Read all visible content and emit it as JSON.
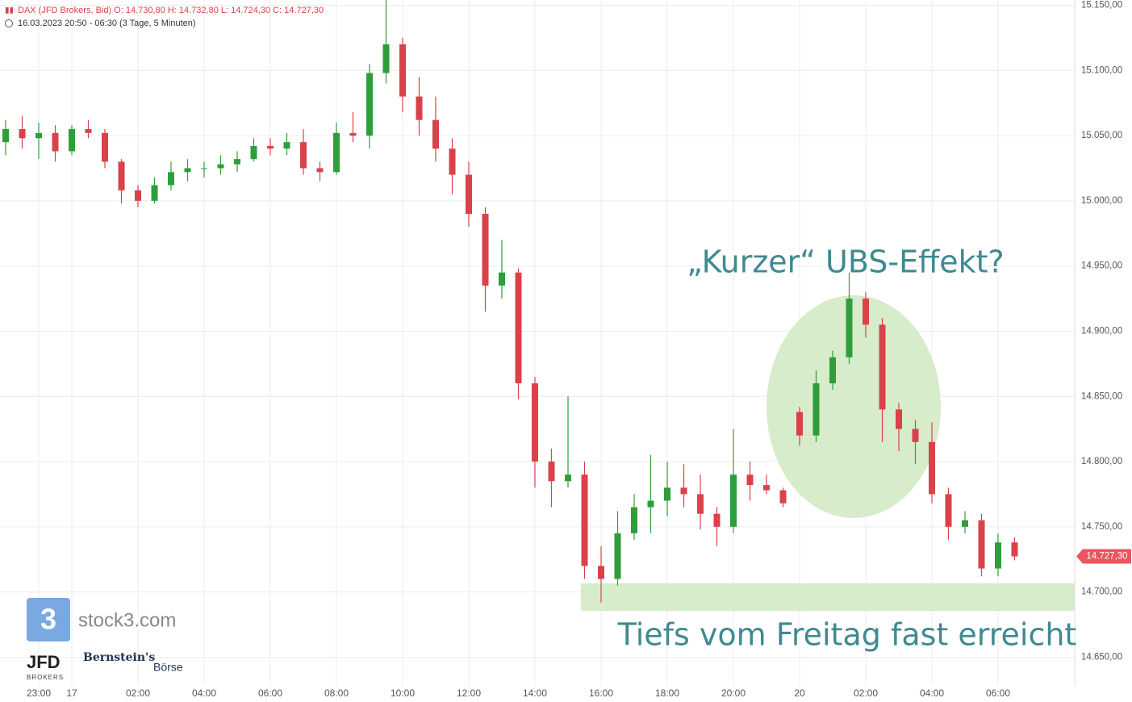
{
  "chart_data": {
    "type": "candlestick",
    "title": "DAX (JFD Brokers, Bid)  O: 14.730,80  H: 14.732,80  L: 14.724,30  C: 14.727,30",
    "subtitle": "16.03.2023 20:50 - 06:30   (3 Tage, 5 Minuten)",
    "categories": [
      null,
      null,
      "23:00",
      null,
      "17",
      null,
      null,
      null,
      "02:00",
      null,
      null,
      null,
      "04:00",
      null,
      null,
      null,
      "06:00",
      null,
      null,
      null,
      "08:00",
      null,
      null,
      null,
      "10:00",
      null,
      null,
      null,
      "12:00",
      null,
      null,
      null,
      "14:00",
      null,
      null,
      null,
      "16:00",
      null,
      null,
      null,
      "18:00",
      null,
      null,
      null,
      "20:00",
      null,
      null,
      null,
      "20",
      null,
      null,
      null,
      "02:00",
      null,
      null,
      null,
      "04:00",
      null,
      null,
      null,
      "06:00",
      null
    ],
    "open": [
      15045,
      15055,
      15048,
      15052,
      15038,
      15055,
      15052,
      15030,
      15008,
      15000,
      15012,
      15022,
      15025,
      15025,
      15028,
      15032,
      15042,
      15040,
      15045,
      15025,
      15022,
      15052,
      15050,
      15098,
      15120,
      15080,
      15062,
      15040,
      15020,
      14990,
      14935,
      14945,
      14860,
      14800,
      14785,
      14790,
      14720,
      14710,
      14745,
      14765,
      14770,
      14780,
      14775,
      14760,
      14750,
      14790,
      14782,
      14778,
      14838,
      14820,
      14860,
      14880,
      14925,
      14905,
      14840,
      14825,
      14815,
      14775,
      14750,
      14755,
      14718,
      14738
    ],
    "high": [
      15062,
      15065,
      15060,
      15058,
      15058,
      15062,
      15055,
      15032,
      15012,
      15018,
      15030,
      15032,
      15030,
      15035,
      15038,
      15048,
      15048,
      15052,
      15055,
      15030,
      15060,
      15068,
      15105,
      15158,
      15125,
      15095,
      15080,
      15048,
      15030,
      14995,
      14970,
      14948,
      14865,
      14810,
      14850,
      14800,
      14735,
      14762,
      14775,
      14805,
      14800,
      14798,
      14790,
      14765,
      14825,
      14800,
      14790,
      14780,
      14842,
      14870,
      14885,
      14945,
      14930,
      14910,
      14845,
      14832,
      14830,
      14780,
      14762,
      14760,
      14745,
      14742
    ],
    "low": [
      15035,
      15040,
      15032,
      15030,
      15035,
      15048,
      15025,
      14998,
      14995,
      14998,
      15008,
      15015,
      15018,
      15020,
      15022,
      15030,
      15035,
      15035,
      15020,
      15015,
      15020,
      15045,
      15040,
      15090,
      15068,
      15050,
      15030,
      15005,
      14980,
      14915,
      14925,
      14848,
      14780,
      14765,
      14780,
      14710,
      14692,
      14705,
      14740,
      14745,
      14758,
      14765,
      14748,
      14735,
      14745,
      14770,
      14775,
      14765,
      14812,
      14815,
      14855,
      14875,
      14895,
      14815,
      14808,
      14798,
      14768,
      14740,
      14745,
      14712,
      14712,
      14724.3
    ],
    "close": [
      15055,
      15048,
      15052,
      15038,
      15055,
      15052,
      15030,
      15008,
      15000,
      15012,
      15022,
      15025,
      15025,
      15028,
      15032,
      15042,
      15040,
      15045,
      15025,
      15022,
      15052,
      15050,
      15098,
      15120,
      15080,
      15062,
      15040,
      15020,
      14990,
      14935,
      14945,
      14860,
      14800,
      14785,
      14790,
      14720,
      14710,
      14745,
      14765,
      14770,
      14780,
      14775,
      14760,
      14750,
      14790,
      14782,
      14778,
      14768,
      14820,
      14860,
      14880,
      14925,
      14905,
      14840,
      14825,
      14815,
      14775,
      14750,
      14755,
      14718,
      14738,
      14727.3
    ],
    "up_color": "#2e9e3a",
    "down_color": "#d9424a",
    "ylim": [
      14628,
      15154
    ],
    "yticks": [
      {
        "value": 14650,
        "label": "14.650,00"
      },
      {
        "value": 14700,
        "label": "14.700,00"
      },
      {
        "value": 14750,
        "label": "14.750,00"
      },
      {
        "value": 14800,
        "label": "14.800,00"
      },
      {
        "value": 14850,
        "label": "14.850,00"
      },
      {
        "value": 14900,
        "label": "14.900,00"
      },
      {
        "value": 14950,
        "label": "14.950,00"
      },
      {
        "value": 15000,
        "label": "15.000,00"
      },
      {
        "value": 15050,
        "label": "15.050,00"
      },
      {
        "value": 15100,
        "label": "15.100,00"
      },
      {
        "value": 15150,
        "label": "15.150,00"
      }
    ],
    "grid": true,
    "last_price": {
      "value": 14727.3,
      "label": "14.727,30"
    },
    "annotations": [
      "„Kurzer“ UBS-Effekt?",
      "Tiefs vom Freitag fast erreicht"
    ]
  },
  "branding": {
    "stock3": "stock3.com",
    "jfd": "JFD",
    "jfd_sub": "BROKERS",
    "bernstein": "Bernstein's",
    "boerse": "Börse"
  }
}
